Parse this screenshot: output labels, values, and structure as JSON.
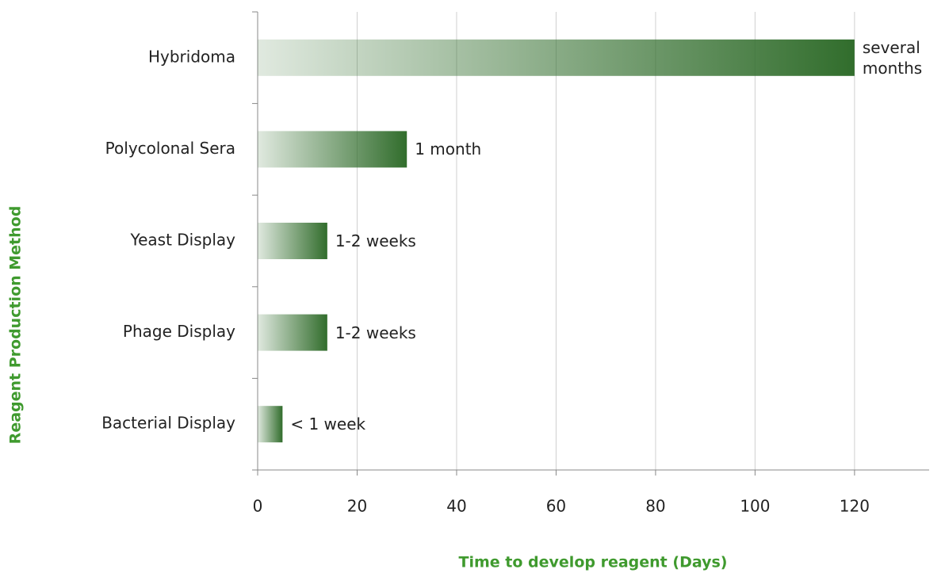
{
  "chart_data": {
    "type": "bar",
    "orientation": "horizontal",
    "x_label": "Time to develop reagent (Days)",
    "y_label": "Reagent Production Method",
    "categories": [
      "Hybridoma",
      "Polycolonal Sera",
      "Yeast Display",
      "Phage Display",
      "Bacterial Display"
    ],
    "values": [
      120,
      30,
      14,
      14,
      5
    ],
    "value_labels": [
      "several months",
      "1 month",
      "1-2 weeks",
      "1-2 weeks",
      "< 1 week"
    ],
    "color": "#316d2c",
    "xlim": [
      0,
      135
    ],
    "xticks": [
      0,
      20,
      40,
      60,
      80,
      100,
      120
    ],
    "grid": true
  }
}
